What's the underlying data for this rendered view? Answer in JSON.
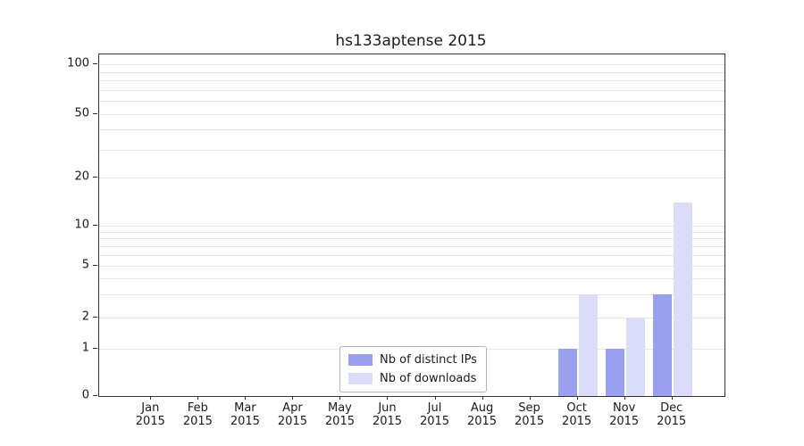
{
  "title": "hs133aptense 2015",
  "chart_data": {
    "type": "bar",
    "categories": [
      "Jan",
      "Feb",
      "Mar",
      "Apr",
      "May",
      "Jun",
      "Jul",
      "Aug",
      "Sep",
      "Oct",
      "Nov",
      "Dec"
    ],
    "year_label": "2015",
    "series": [
      {
        "name": "Nb of distinct IPs",
        "color": "#9a9ff0",
        "values": [
          0,
          0,
          0,
          0,
          0,
          0,
          0,
          0,
          0,
          1,
          1,
          3
        ]
      },
      {
        "name": "Nb of downloads",
        "color": "#dadcf9",
        "values": [
          0,
          0,
          0,
          0,
          0,
          0,
          0,
          0,
          0,
          3,
          2,
          14
        ]
      }
    ],
    "yticks": [
      0,
      1,
      2,
      5,
      10,
      20,
      50,
      100
    ],
    "gridline_values": [
      1,
      2,
      3,
      4,
      5,
      6,
      7,
      8,
      9,
      10,
      20,
      30,
      40,
      50,
      60,
      70,
      80,
      90,
      100
    ],
    "ylim": [
      0,
      100
    ],
    "grid": "horizontal",
    "legend_position": "lower-center",
    "colors": {
      "grid": "#e7e7e7",
      "axis": "#333333",
      "text": "#1a1a1a"
    }
  }
}
